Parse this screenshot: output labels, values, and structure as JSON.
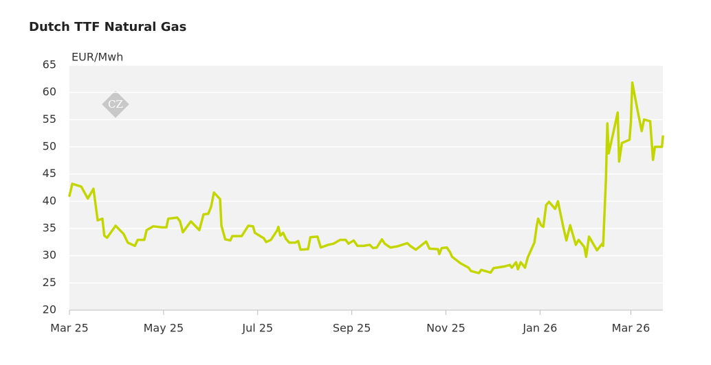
{
  "chart_data": {
    "type": "line",
    "title": "Dutch TTF Natural Gas",
    "y_label": "EUR/Mwh",
    "watermark": "CZ",
    "x": [
      0,
      0.06,
      0.25,
      0.39,
      0.51,
      0.6,
      0.7,
      0.74,
      0.8,
      0.98,
      1.15,
      1.24,
      1.39,
      1.45,
      1.59,
      1.64,
      1.78,
      1.96,
      2.06,
      2.1,
      2.29,
      2.35,
      2.41,
      2.58,
      2.76,
      2.85,
      2.95,
      3.01,
      3.07,
      3.2,
      3.23,
      3.31,
      3.42,
      3.46,
      3.66,
      3.8,
      3.9,
      3.94,
      4.13,
      4.18,
      4.28,
      4.41,
      4.44,
      4.48,
      4.54,
      4.6,
      4.67,
      4.8,
      4.86,
      4.91,
      5.07,
      5.12,
      5.27,
      5.34,
      5.5,
      5.61,
      5.75,
      5.87,
      5.93,
      6.04,
      6.12,
      6.25,
      6.38,
      6.45,
      6.53,
      6.64,
      6.7,
      6.82,
      6.96,
      7.18,
      7.24,
      7.36,
      7.58,
      7.65,
      7.83,
      7.86,
      7.91,
      8.02,
      8.09,
      8.13,
      8.31,
      8.48,
      8.53,
      8.7,
      8.75,
      8.95,
      9.01,
      9.23,
      9.36,
      9.4,
      9.49,
      9.53,
      9.59,
      9.68,
      9.74,
      9.88,
      9.93,
      9.96,
      10.02,
      10.07,
      10.13,
      10.19,
      10.32,
      10.38,
      10.5,
      10.56,
      10.64,
      10.76,
      10.82,
      10.94,
      10.98,
      11.04,
      11.21,
      11.32,
      11.34,
      11.4,
      11.43,
      11.46,
      11.65,
      11.68,
      11.74,
      11.9,
      11.93,
      11.96,
      12.07,
      12.16,
      12.21,
      12.34,
      12.4,
      12.44,
      12.59,
      12.61
    ],
    "series": [
      {
        "name": "Dutch TTF",
        "color": "#c3d600",
        "values": [
          41,
          43.2,
          42.7,
          40.5,
          42.3,
          36.5,
          36.8,
          33.7,
          33.3,
          35.5,
          34,
          32.4,
          31.8,
          32.9,
          32.9,
          34.7,
          35.4,
          35.2,
          35.2,
          36.8,
          37,
          36.3,
          34.3,
          36.3,
          34.7,
          37.6,
          37.7,
          39,
          41.6,
          40.4,
          35.5,
          33,
          32.8,
          33.6,
          33.6,
          35.5,
          35.4,
          34.2,
          33.2,
          32.5,
          32.9,
          34.6,
          35.3,
          33.7,
          34.2,
          33.1,
          32.4,
          32.4,
          32.7,
          31.1,
          31.2,
          33.4,
          33.5,
          31.5,
          32,
          32.2,
          32.9,
          32.9,
          32.2,
          32.8,
          31.8,
          31.8,
          32,
          31.4,
          31.5,
          33,
          32.2,
          31.5,
          31.7,
          32.3,
          31.8,
          31.1,
          32.6,
          31.3,
          31.2,
          30.3,
          31.4,
          31.5,
          30.6,
          29.8,
          28.6,
          27.8,
          27.2,
          26.8,
          27.4,
          26.9,
          27.7,
          28,
          28.3,
          27.8,
          28.8,
          27.5,
          28.8,
          27.8,
          29.7,
          32.4,
          35.5,
          36.8,
          35.6,
          35.3,
          39.3,
          39.9,
          38.6,
          40,
          35,
          32.8,
          35.6,
          32,
          32.9,
          31.6,
          29.8,
          33.5,
          31,
          32.2,
          31.8,
          44,
          54.3,
          48.8,
          56.3,
          47.3,
          50.7,
          51.3,
          54.5,
          61.8,
          56.8,
          52.9,
          55,
          54.7,
          47.6,
          50,
          50,
          51.9
        ]
      }
    ],
    "xlim": [
      0,
      12.61
    ],
    "xticks": [
      {
        "value": 0,
        "label": "Mar 25"
      },
      {
        "value": 2,
        "label": "May 25"
      },
      {
        "value": 4,
        "label": "Jul 25"
      },
      {
        "value": 6,
        "label": "Sep 25"
      },
      {
        "value": 8,
        "label": "Nov 25"
      },
      {
        "value": 10,
        "label": "Jan 26"
      },
      {
        "value": 11.93,
        "label": "Mar 26"
      }
    ],
    "ylim": [
      20,
      65
    ],
    "yticks": [
      20,
      25,
      30,
      35,
      40,
      45,
      50,
      55,
      60,
      65
    ],
    "grid": true
  }
}
